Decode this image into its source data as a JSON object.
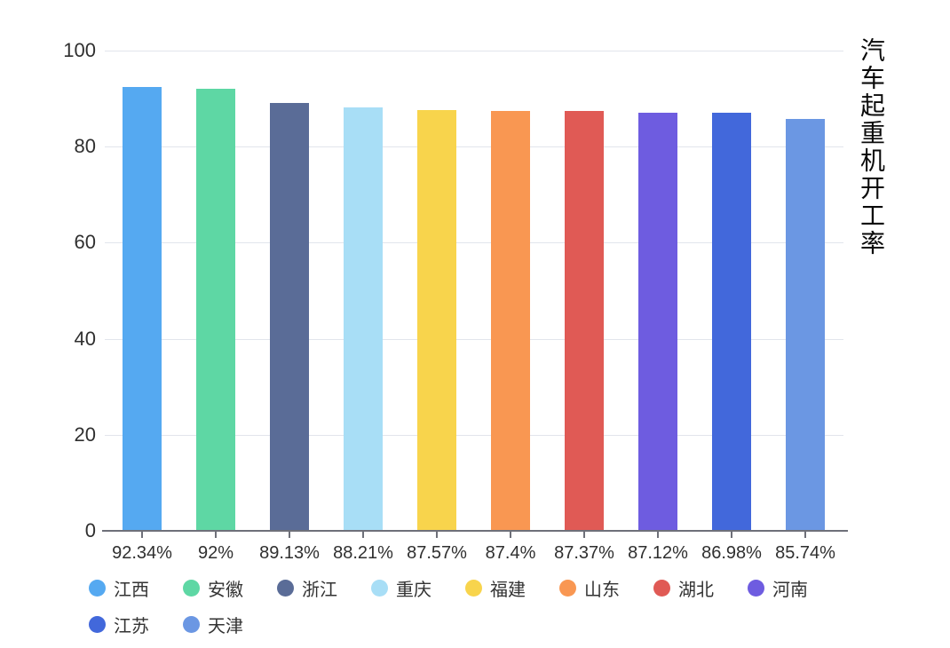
{
  "title": "汽车起重机开工率",
  "chart_data": {
    "type": "bar",
    "title": "汽车起重机开工率",
    "categories": [
      "江西",
      "安徽",
      "浙江",
      "重庆",
      "福建",
      "山东",
      "湖北",
      "河南",
      "江苏",
      "天津"
    ],
    "values": [
      92.34,
      92,
      89.13,
      88.21,
      87.57,
      87.4,
      87.37,
      87.12,
      86.98,
      85.74
    ],
    "value_labels": [
      "92.34%",
      "92%",
      "89.13%",
      "88.21%",
      "87.57%",
      "87.4%",
      "87.37%",
      "87.12%",
      "86.98%",
      "85.74%"
    ],
    "colors": [
      "#55a9f1",
      "#5ed7a4",
      "#5a6c97",
      "#a8def6",
      "#f8d44c",
      "#f99752",
      "#e05a55",
      "#6e5ce0",
      "#4268db",
      "#6b97e3"
    ],
    "y_ticks": [
      0,
      20,
      40,
      60,
      80,
      100
    ],
    "ylim": [
      0,
      100
    ],
    "xlabel": "",
    "ylabel": "",
    "grid": true,
    "legend_position": "bottom",
    "axis_color": "#6e7079",
    "grid_color": "#e2e5ec",
    "label_color": "#2f2f2f"
  }
}
